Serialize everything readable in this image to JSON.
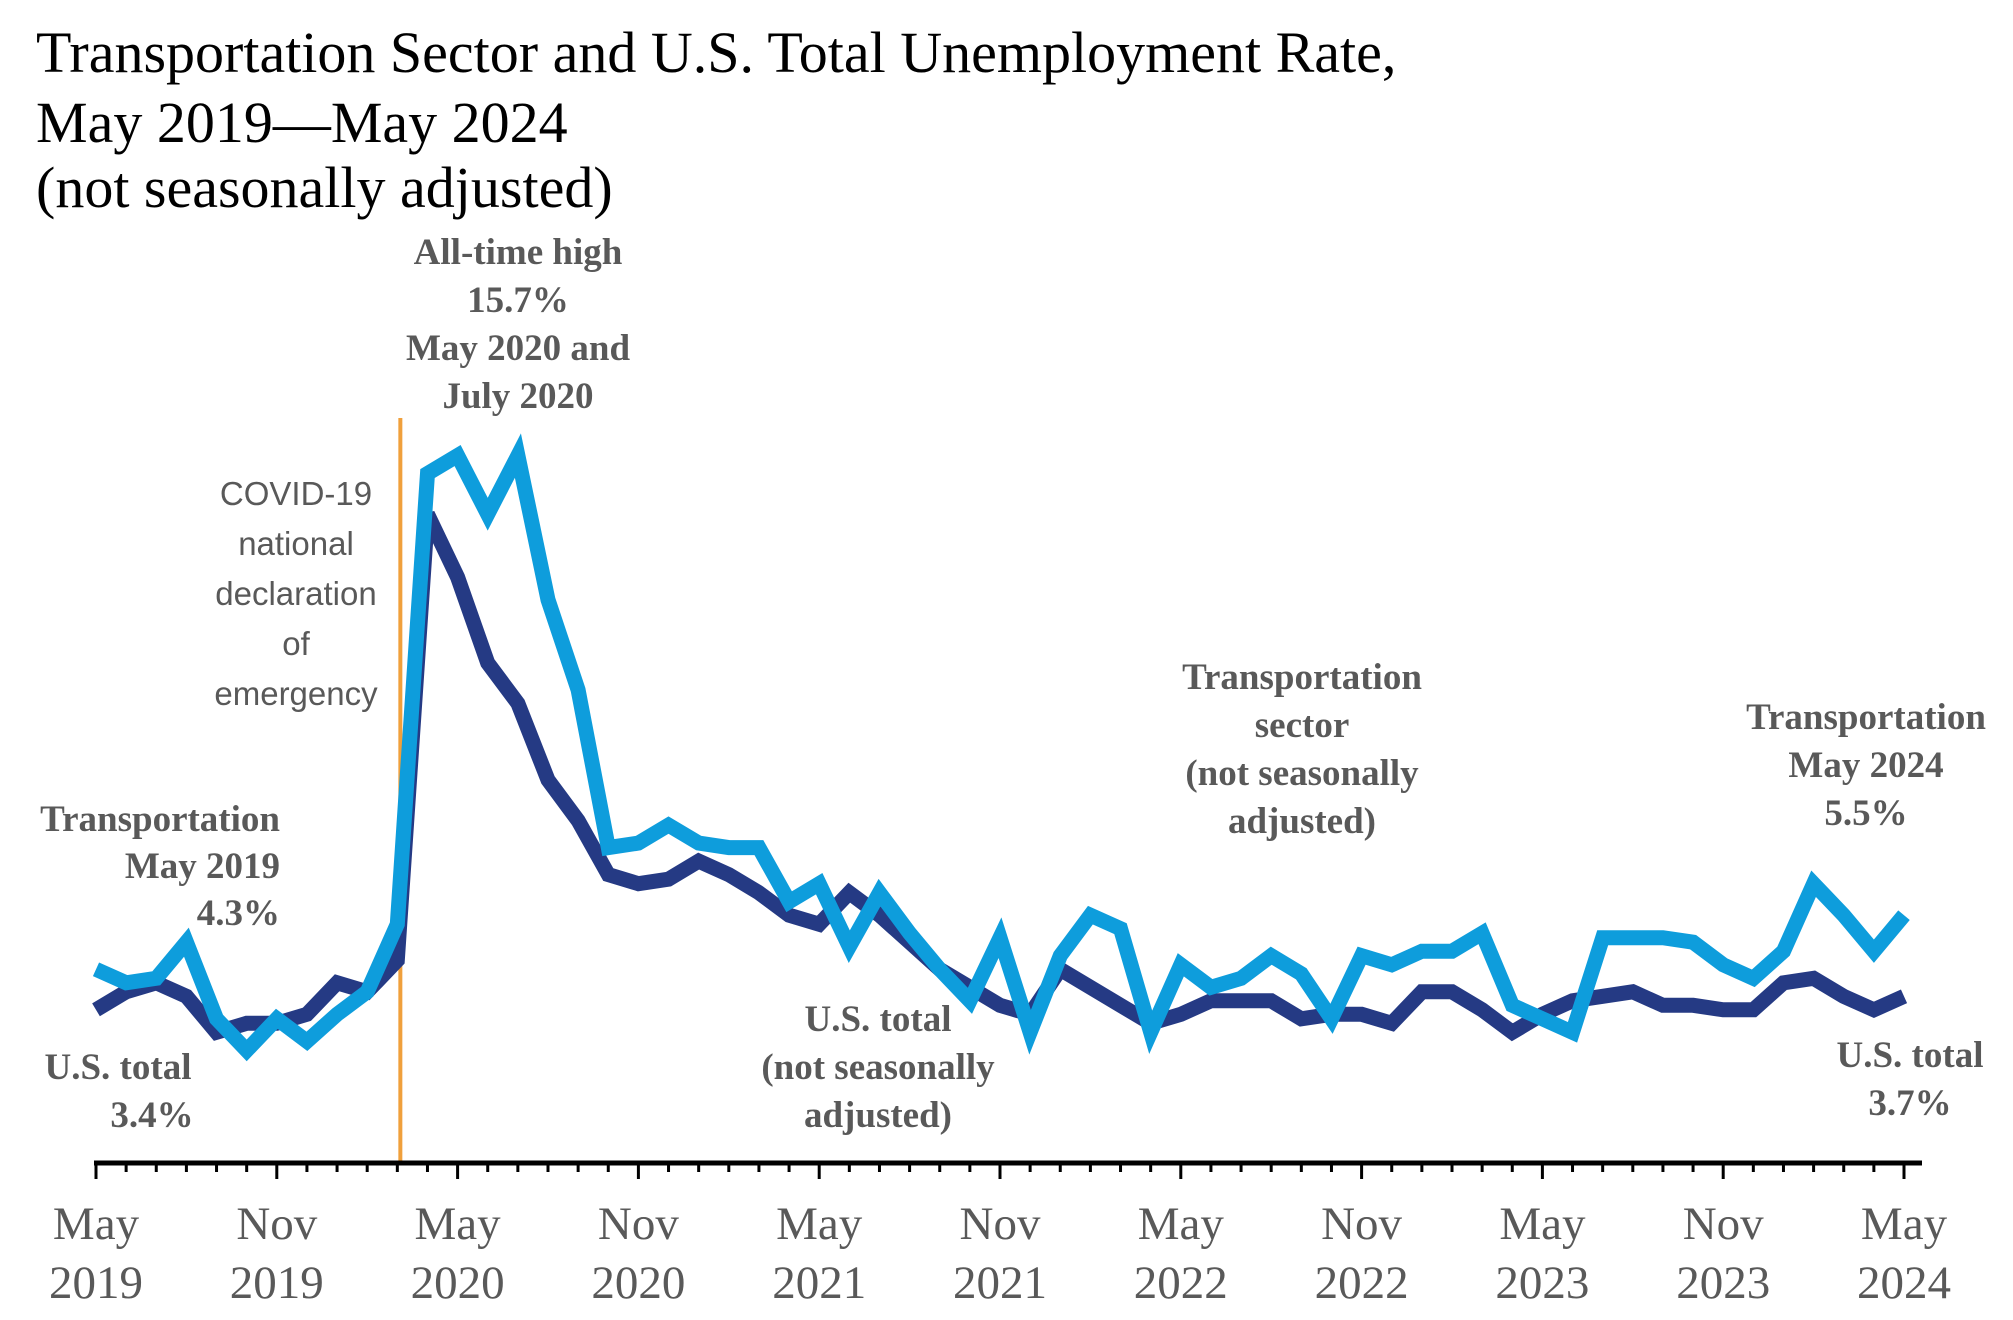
{
  "chart_data": {
    "type": "line",
    "title_lines": [
      "Transportation Sector and U.S. Total Unemployment Rate,",
      "May 2019—May 2024",
      "(not seasonally adjusted)"
    ],
    "ylim": [
      0,
      18
    ],
    "x_tick_labels": [
      {
        "month": "May",
        "year": "2019",
        "index": 0
      },
      {
        "month": "Nov",
        "year": "2019",
        "index": 6
      },
      {
        "month": "May",
        "year": "2020",
        "index": 12
      },
      {
        "month": "Nov",
        "year": "2020",
        "index": 18
      },
      {
        "month": "May",
        "year": "2021",
        "index": 24
      },
      {
        "month": "Nov",
        "year": "2021",
        "index": 30
      },
      {
        "month": "May",
        "year": "2022",
        "index": 36
      },
      {
        "month": "Nov",
        "year": "2022",
        "index": 42
      },
      {
        "month": "May",
        "year": "2023",
        "index": 48
      },
      {
        "month": "Nov",
        "year": "2023",
        "index": 54
      },
      {
        "month": "May",
        "year": "2024",
        "index": 60
      }
    ],
    "series": [
      {
        "name": "Transportation sector (not seasonally adjusted)",
        "color": "#0e9ddc",
        "values": [
          4.3,
          4.0,
          4.1,
          4.9,
          3.2,
          2.5,
          3.2,
          2.7,
          3.3,
          3.8,
          5.3,
          15.3,
          15.7,
          14.4,
          15.7,
          12.5,
          10.5,
          7.0,
          7.1,
          7.5,
          7.1,
          7.0,
          7.0,
          5.8,
          6.2,
          4.8,
          6.0,
          5.1,
          4.3,
          3.6,
          5.0,
          2.9,
          4.6,
          5.5,
          5.2,
          2.9,
          4.4,
          3.9,
          4.1,
          4.6,
          4.2,
          3.2,
          4.6,
          4.4,
          4.7,
          4.7,
          5.1,
          3.5,
          3.2,
          2.9,
          5.0,
          5.0,
          5.0,
          4.9,
          4.4,
          4.1,
          4.7,
          6.2,
          5.5,
          4.7,
          5.5
        ]
      },
      {
        "name": "U.S. total (not seasonally adjusted)",
        "color": "#253a84",
        "values": [
          3.4,
          3.8,
          4.0,
          3.7,
          2.9,
          3.1,
          3.1,
          3.3,
          4.0,
          3.8,
          4.5,
          14.4,
          13.0,
          11.1,
          10.2,
          8.5,
          7.6,
          6.4,
          6.2,
          6.3,
          6.7,
          6.4,
          6.0,
          5.5,
          5.3,
          6.0,
          5.5,
          4.9,
          4.3,
          3.9,
          3.5,
          3.3,
          4.3,
          3.9,
          3.5,
          3.1,
          3.3,
          3.6,
          3.6,
          3.6,
          3.2,
          3.3,
          3.3,
          3.1,
          3.8,
          3.8,
          3.4,
          2.9,
          3.3,
          3.6,
          3.7,
          3.8,
          3.5,
          3.5,
          3.4,
          3.4,
          4.0,
          4.1,
          3.7,
          3.4,
          3.7
        ]
      }
    ],
    "event_line": {
      "index": 10,
      "color": "#f0a03c",
      "label_lines": [
        "COVID-19",
        "national",
        "declaration",
        "of",
        "emergency"
      ]
    },
    "annotations": {
      "transport_start": [
        "Transportation",
        "May 2019",
        "4.3%"
      ],
      "us_start": [
        "U.S. total",
        "3.4%"
      ],
      "peak": [
        "All-time high",
        "15.7%",
        "May 2020 and",
        "July 2020"
      ],
      "transport_series": [
        "Transportation",
        "sector",
        "(not seasonally",
        "adjusted)"
      ],
      "us_series": [
        "U.S. total",
        "(not seasonally",
        "adjusted)"
      ],
      "transport_end": [
        "Transportation",
        "May 2024",
        "5.5%"
      ],
      "us_end": [
        "U.S. total",
        "3.7%"
      ]
    }
  }
}
